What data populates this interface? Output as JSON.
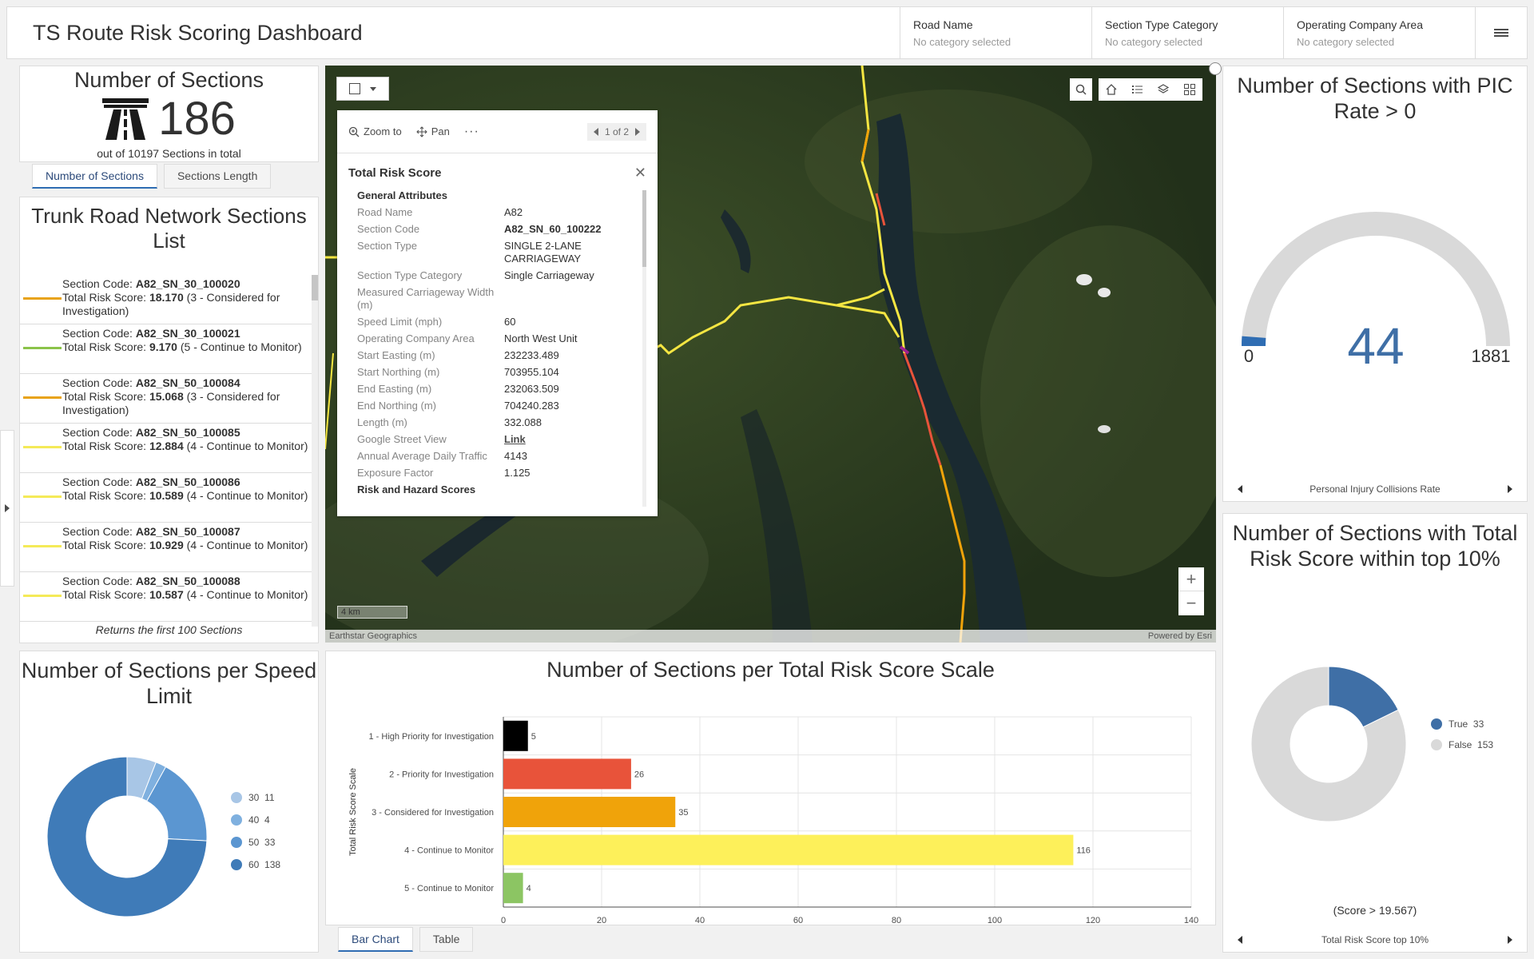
{
  "header": {
    "title": "TS Route Risk Scoring Dashboard",
    "selectors": [
      {
        "label": "Road Name",
        "value": "No category selected"
      },
      {
        "label": "Section Type Category",
        "value": "No category selected"
      },
      {
        "label": "Operating Company Area",
        "value": "No category selected"
      }
    ]
  },
  "indicator": {
    "title": "Number of Sections",
    "value": "186",
    "bottom": "out of 10197 Sections in total",
    "tabs": [
      "Number of Sections",
      "Sections Length"
    ]
  },
  "list": {
    "title": "Trunk Road Network Sections List",
    "footer": "Returns the first 100 Sections",
    "items": [
      {
        "code": "A82_SN_30_100020",
        "score": "18.170",
        "cat": "(3 - Considered for Investigation)",
        "color": "#e8a317"
      },
      {
        "code": "A82_SN_30_100021",
        "score": "9.170",
        "cat": "(5 - Continue to Monitor)",
        "color": "#8bc34a"
      },
      {
        "code": "A82_SN_50_100084",
        "score": "15.068",
        "cat": "(3 - Considered for Investigation)",
        "color": "#e8a317"
      },
      {
        "code": "A82_SN_50_100085",
        "score": "12.884",
        "cat": "(4 - Continue to Monitor)",
        "color": "#f4ea58"
      },
      {
        "code": "A82_SN_50_100086",
        "score": "10.589",
        "cat": "(4 - Continue to Monitor)",
        "color": "#f4ea58"
      },
      {
        "code": "A82_SN_50_100087",
        "score": "10.929",
        "cat": "(4 - Continue to Monitor)",
        "color": "#f4ea58"
      },
      {
        "code": "A82_SN_50_100088",
        "score": "10.587",
        "cat": "(4 - Continue to Monitor)",
        "color": "#f4ea58"
      }
    ],
    "item_prefix_code": "Section Code: ",
    "item_prefix_score": "Total Risk Score: "
  },
  "map": {
    "popup": {
      "zoom_label": "Zoom to",
      "pan_label": "Pan",
      "pager": "1 of 2",
      "title": "Total Risk Score",
      "section_general": "General Attributes",
      "section_risk": "Risk and Hazard Scores",
      "attributes": [
        {
          "k": "Road Name",
          "v": "A82",
          "bold": false
        },
        {
          "k": "Section Code",
          "v": "A82_SN_60_100222",
          "bold": true
        },
        {
          "k": "Section Type",
          "v": "SINGLE 2-LANE CARRIAGEWAY",
          "bold": false
        },
        {
          "k": "Section Type Category",
          "v": "Single Carriageway",
          "bold": false
        },
        {
          "k": "Measured Carriageway Width (m)",
          "v": "",
          "bold": false
        },
        {
          "k": "Speed Limit (mph)",
          "v": "60",
          "bold": false
        },
        {
          "k": "Operating Company Area",
          "v": "North West Unit",
          "bold": false
        },
        {
          "k": "Start Easting (m)",
          "v": "232233.489",
          "bold": false
        },
        {
          "k": "Start Northing (m)",
          "v": "703955.104",
          "bold": false
        },
        {
          "k": "End Easting (m)",
          "v": "232063.509",
          "bold": false
        },
        {
          "k": "End Northing (m)",
          "v": "704240.283",
          "bold": false
        },
        {
          "k": "Length (m)",
          "v": "332.088",
          "bold": false
        },
        {
          "k": "Google Street View",
          "v": "Link",
          "bold": true
        },
        {
          "k": "Annual Average Daily Traffic",
          "v": "4143",
          "bold": false
        },
        {
          "k": "Exposure Factor",
          "v": "1.125",
          "bold": false
        }
      ]
    },
    "scale": "4 km",
    "attribution_left": "Earthstar Geographics",
    "attribution_right": "Powered by Esri"
  },
  "gauge": {
    "title": "Number of Sections with PIC Rate > 0",
    "value": 44,
    "min": 0,
    "max": 1881,
    "nav_label": "Personal Injury Collisions Rate",
    "color_fill": "#2f6db3",
    "color_track": "#d9d9d9"
  },
  "top10": {
    "title": "Number of Sections with Total Risk Score within top 10%",
    "note": "(Score > 19.567)",
    "nav_label": "Total Risk Score top 10%",
    "chart": {
      "type": "pie",
      "slices": [
        {
          "label": "True",
          "value": 33,
          "color": "#3f6fa6"
        },
        {
          "label": "False",
          "value": 153,
          "color": "#d9d9d9"
        }
      ]
    }
  },
  "speed": {
    "title": "Number of Sections per Speed Limit",
    "chart": {
      "type": "pie",
      "slices": [
        {
          "label": "30",
          "value": 11,
          "color": "#a8c6e6"
        },
        {
          "label": "40",
          "value": 4,
          "color": "#7fb0df"
        },
        {
          "label": "50",
          "value": 33,
          "color": "#5b96d1"
        },
        {
          "label": "60",
          "value": 138,
          "color": "#3f7bb8"
        }
      ]
    }
  },
  "bars": {
    "title": "Number of Sections per Total Risk Score Scale",
    "tabs": [
      "Bar Chart",
      "Table"
    ]
  },
  "chart_data": {
    "type": "bar",
    "orientation": "horizontal",
    "title": "Number of Sections per Total Risk Score Scale",
    "ylabel": "Total Risk Score Scale",
    "categories": [
      "1 - High Priority for Investigation",
      "2 - Priority for Investigation",
      "3 - Considered for Investigation",
      "4 - Continue to Monitor",
      "5 - Continue to Monitor"
    ],
    "values": [
      5,
      26,
      35,
      116,
      4
    ],
    "colors": [
      "#000000",
      "#e8533a",
      "#f0a30a",
      "#fdf05a",
      "#8cc563"
    ],
    "xlim": [
      0,
      140
    ],
    "xticks": [
      0,
      20,
      40,
      60,
      80,
      100,
      120,
      140
    ]
  }
}
